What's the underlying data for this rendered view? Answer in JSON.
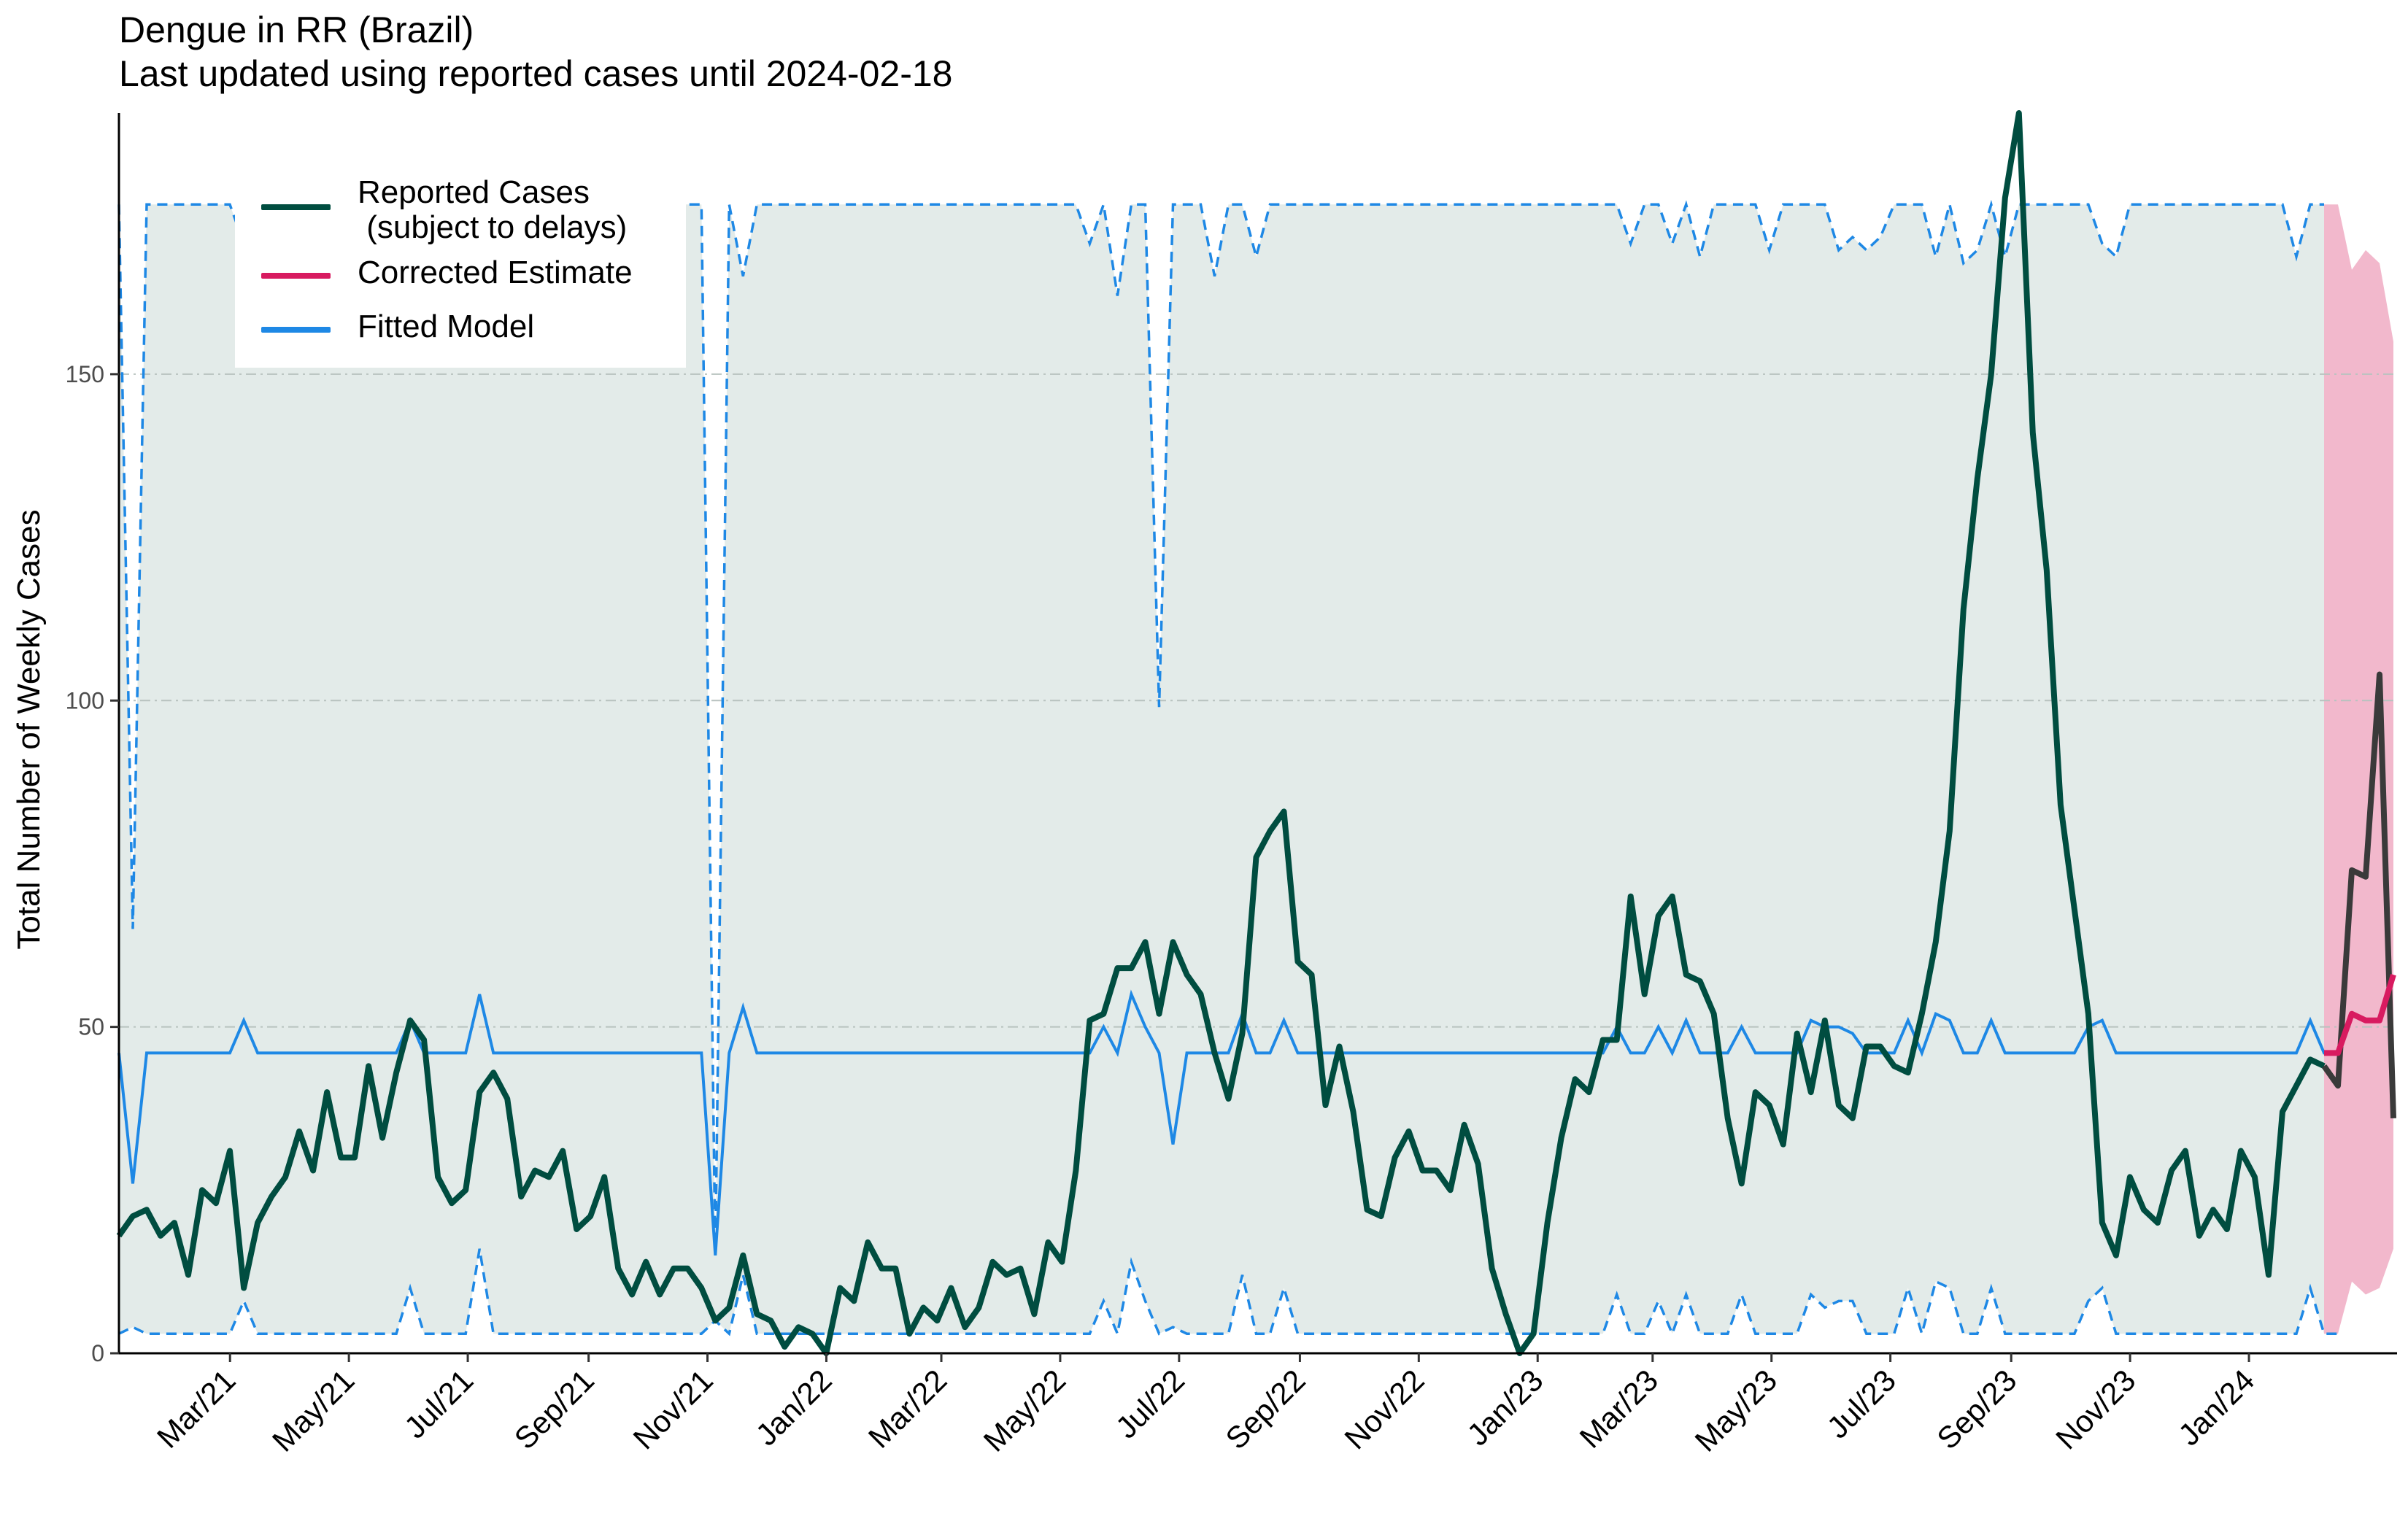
{
  "chart_data": {
    "type": "line",
    "title": "Dengue in RR (Brazil)",
    "subtitle": "Last updated using reported cases until 2024-02-18",
    "xlabel": "",
    "ylabel": "Total Number of Weekly Cases",
    "ylim": [
      0,
      190
    ],
    "y_ticks": [
      0,
      50,
      100,
      150
    ],
    "x_ticks": [
      "Mar/21",
      "May/21",
      "Jul/21",
      "Sep/21",
      "Nov/21",
      "Jan/22",
      "Mar/22",
      "May/22",
      "Jul/22",
      "Sep/22",
      "Nov/22",
      "Jan/23",
      "Mar/23",
      "May/23",
      "Jul/23",
      "Sep/23",
      "Nov/23",
      "Jan/24"
    ],
    "x_start": "2021-01-03",
    "x_end": "2024-03-17",
    "grid": "horizontal dashed",
    "legend_position": "top-left",
    "colors": {
      "reported": "#004d40",
      "corrected": "#d81b60",
      "fitted": "#1e88e5",
      "band": "#e3ebe9",
      "nowcast_band": "#f2b8cc",
      "nowcast_reported": "#3a3a3a"
    },
    "series": [
      {
        "name": "Reported Cases\n (subject to delays)",
        "values": [
          18,
          21,
          22,
          18,
          20,
          12,
          25,
          23,
          31,
          10,
          20,
          24,
          27,
          34,
          28,
          40,
          30,
          30,
          44,
          33,
          43,
          51,
          48,
          27,
          23,
          25,
          40,
          43,
          39,
          24,
          28,
          27,
          31,
          19,
          21,
          27,
          13,
          9,
          14,
          9,
          13,
          13,
          10,
          5,
          7,
          15,
          6,
          5,
          1,
          4,
          3,
          0,
          10,
          8,
          17,
          13,
          13,
          3,
          7,
          5,
          10,
          4,
          7,
          14,
          12,
          13,
          6,
          17,
          14,
          28,
          51,
          52,
          59,
          59,
          63,
          52,
          63,
          58,
          55,
          46,
          39,
          49,
          76,
          80,
          83,
          60,
          58,
          38,
          47,
          37,
          22,
          21,
          30,
          34,
          28,
          28,
          25,
          35,
          29,
          13,
          6,
          0,
          3,
          20,
          33,
          42,
          40,
          48,
          48,
          70,
          55,
          67,
          70,
          58,
          57,
          52,
          36,
          26,
          40,
          38,
          32,
          49,
          40,
          51,
          38,
          36,
          47,
          47,
          44,
          43,
          52,
          63,
          80,
          114,
          134,
          150,
          177,
          190,
          141,
          120,
          84,
          68,
          52,
          20,
          15,
          27,
          22,
          20,
          28,
          31,
          18,
          22,
          19,
          31,
          27,
          12,
          37,
          41,
          45,
          44,
          41,
          74,
          73,
          104,
          36
        ]
      },
      {
        "name": "Corrected Estimate",
        "values": [
          46,
          46,
          52,
          51,
          51,
          58
        ]
      },
      {
        "name": "Fitted Model",
        "values": [
          46,
          26,
          46,
          46,
          46,
          46,
          46,
          46,
          46,
          51,
          46,
          46,
          46,
          46,
          46,
          46,
          46,
          46,
          46,
          46,
          46,
          51,
          46,
          46,
          46,
          46,
          55,
          46,
          46,
          46,
          46,
          46,
          46,
          46,
          46,
          46,
          46,
          46,
          46,
          46,
          46,
          46,
          46,
          15,
          46,
          53,
          46,
          46,
          46,
          46,
          46,
          46,
          46,
          46,
          46,
          46,
          46,
          46,
          46,
          46,
          46,
          46,
          46,
          46,
          46,
          46,
          46,
          46,
          46,
          46,
          46,
          50,
          46,
          55,
          50,
          46,
          32,
          46,
          46,
          46,
          46,
          52,
          46,
          46,
          51,
          46,
          46,
          46,
          46,
          46,
          46,
          46,
          46,
          46,
          46,
          46,
          46,
          46,
          46,
          46,
          46,
          46,
          46,
          46,
          46,
          46,
          46,
          46,
          50,
          46,
          46,
          50,
          46,
          51,
          46,
          46,
          46,
          50,
          46,
          46,
          46,
          46,
          51,
          50,
          50,
          49,
          46,
          46,
          46,
          51,
          46,
          52,
          51,
          46,
          46,
          51,
          46,
          46,
          46,
          46,
          46,
          46,
          50,
          51,
          46,
          46,
          46,
          46,
          46,
          46,
          46,
          46,
          46,
          46,
          46,
          46,
          46,
          46,
          51,
          46,
          46
        ]
      }
    ],
    "upper_bound": [
      176,
      65,
      176,
      176,
      176,
      176,
      176,
      176,
      176,
      170,
      176,
      176,
      176,
      176,
      176,
      176,
      176,
      176,
      176,
      176,
      176,
      176,
      176,
      176,
      176,
      176,
      176,
      176,
      176,
      176,
      176,
      176,
      176,
      176,
      176,
      176,
      176,
      176,
      176,
      176,
      176,
      176,
      176,
      15,
      176,
      165,
      176,
      176,
      176,
      176,
      176,
      176,
      176,
      176,
      176,
      176,
      176,
      176,
      176,
      176,
      176,
      176,
      176,
      176,
      176,
      176,
      176,
      176,
      176,
      176,
      170,
      176,
      162,
      176,
      176,
      99,
      176,
      176,
      176,
      165,
      176,
      176,
      168,
      176,
      176,
      176,
      176,
      176,
      176,
      176,
      176,
      176,
      176,
      176,
      176,
      176,
      176,
      176,
      176,
      176,
      176,
      176,
      176,
      176,
      176,
      176,
      176,
      176,
      176,
      170,
      176,
      176,
      170,
      176,
      168,
      176,
      176,
      176,
      176,
      169,
      176,
      176,
      176,
      176,
      169,
      171,
      169,
      171,
      176,
      176,
      176,
      168,
      176,
      167,
      169,
      176,
      168,
      176,
      176,
      176,
      176,
      176,
      176,
      170,
      168,
      176,
      176,
      176,
      176,
      176,
      176,
      176,
      176,
      176,
      176,
      176,
      176,
      168,
      176,
      176
    ],
    "lower_bound": [
      3,
      4,
      3,
      3,
      3,
      3,
      3,
      3,
      3,
      8,
      3,
      3,
      3,
      3,
      3,
      3,
      3,
      3,
      3,
      3,
      3,
      10,
      3,
      3,
      3,
      3,
      16,
      3,
      3,
      3,
      3,
      3,
      3,
      3,
      3,
      3,
      3,
      3,
      3,
      3,
      3,
      3,
      3,
      5,
      3,
      12,
      3,
      3,
      3,
      3,
      3,
      3,
      3,
      3,
      3,
      3,
      3,
      3,
      3,
      3,
      3,
      3,
      3,
      3,
      3,
      3,
      3,
      3,
      3,
      3,
      3,
      8,
      3,
      14,
      8,
      3,
      4,
      3,
      3,
      3,
      3,
      12,
      3,
      3,
      10,
      3,
      3,
      3,
      3,
      3,
      3,
      3,
      3,
      3,
      3,
      3,
      3,
      3,
      3,
      3,
      3,
      3,
      3,
      3,
      3,
      3,
      3,
      3,
      9,
      3,
      3,
      8,
      3,
      9,
      3,
      3,
      3,
      9,
      3,
      3,
      3,
      3,
      9,
      7,
      8,
      8,
      3,
      3,
      3,
      10,
      3,
      11,
      10,
      3,
      3,
      10,
      3,
      3,
      3,
      3,
      3,
      3,
      8,
      10,
      3,
      3,
      3,
      3,
      3,
      3,
      3,
      3,
      3,
      3,
      3,
      3,
      3,
      3,
      10,
      3,
      3
    ],
    "nowcast_upper": [
      176,
      176,
      166,
      169,
      167,
      155
    ],
    "nowcast_lower": [
      3,
      3,
      11,
      9,
      10,
      16
    ]
  }
}
